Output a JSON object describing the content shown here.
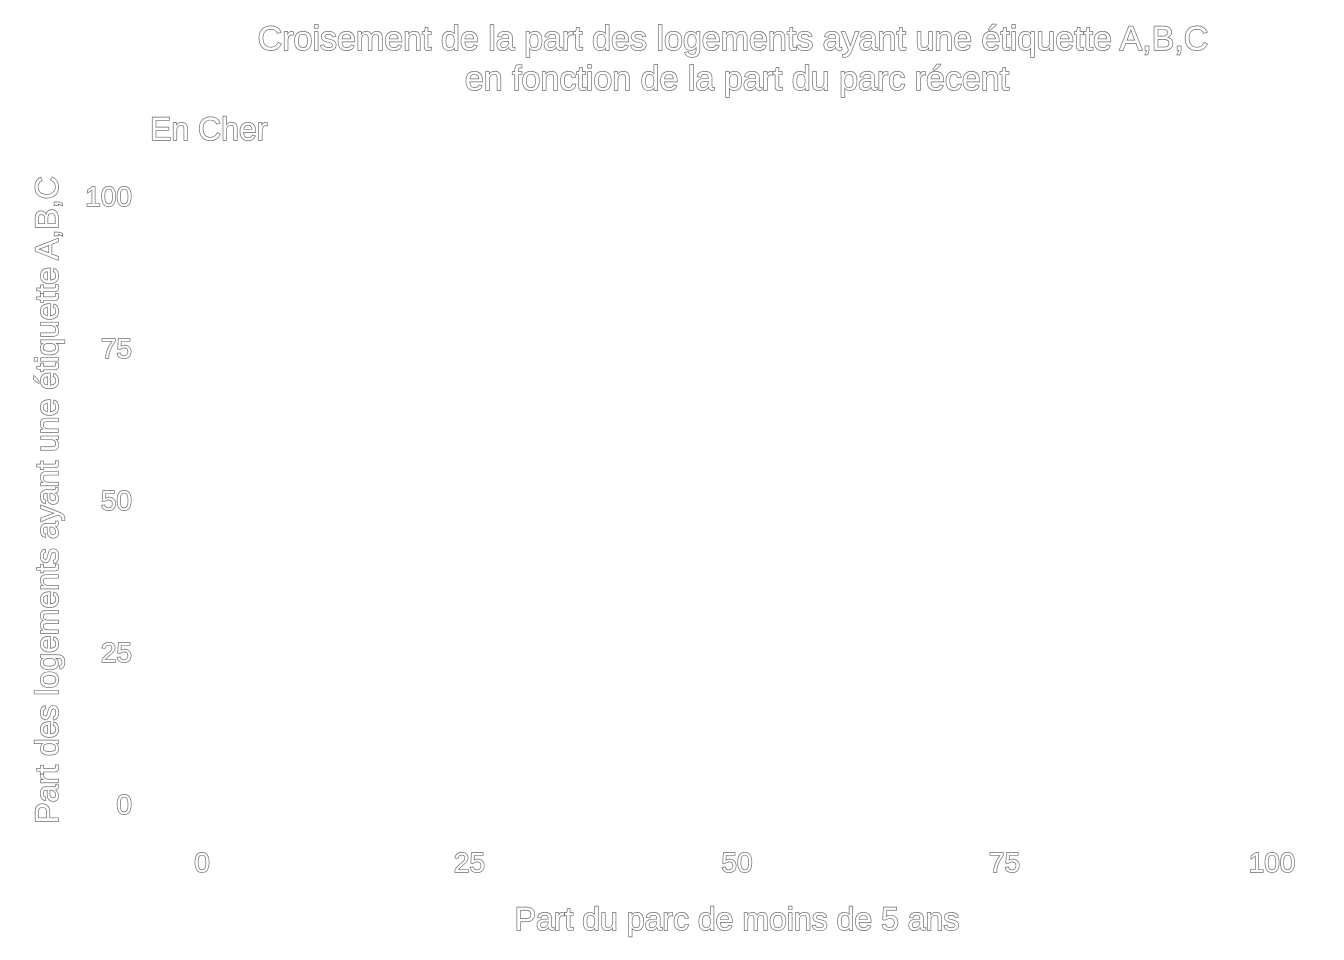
{
  "chart_data": {
    "type": "scatter",
    "title": "Croisement de la part des logements ayant une étiquette A,B,C",
    "title_line2": "en fonction de la part du parc récent",
    "subtitle": "En Cher",
    "xlabel": "Part du parc de moins de 5 ans",
    "ylabel": "Part des logements ayant une étiquette A,B,C",
    "xlim": [
      0,
      100
    ],
    "ylim": [
      0,
      100
    ],
    "x_ticks": [
      "0",
      "25",
      "50",
      "75",
      "100"
    ],
    "y_ticks": [
      "0",
      "25",
      "50",
      "75",
      "100"
    ],
    "grid": false,
    "points": []
  }
}
